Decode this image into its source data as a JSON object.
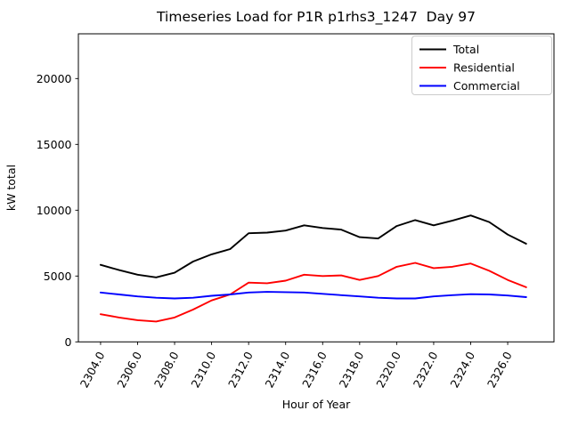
{
  "title": "Timeseries Load for P1R p1rhs3_1247  Day 97",
  "chart_data": {
    "type": "line",
    "title": "Timeseries Load for P1R p1rhs3_1247  Day 97",
    "xlabel": "Hour of Year",
    "ylabel": "kW total",
    "x": [
      2304,
      2305,
      2306,
      2307,
      2308,
      2309,
      2310,
      2311,
      2312,
      2313,
      2314,
      2315,
      2316,
      2317,
      2318,
      2319,
      2320,
      2321,
      2322,
      2323,
      2324,
      2325,
      2326,
      2327
    ],
    "series": [
      {
        "name": "Total",
        "color": "#000000",
        "values": [
          5850,
          5450,
          5100,
          4900,
          5250,
          6100,
          6650,
          7050,
          8250,
          8300,
          8450,
          8850,
          8650,
          8530,
          7950,
          7850,
          8800,
          9250,
          8850,
          9200,
          9600,
          9100,
          8150,
          7450
        ]
      },
      {
        "name": "Residential",
        "color": "#ff0000",
        "values": [
          2100,
          1850,
          1650,
          1550,
          1850,
          2450,
          3150,
          3600,
          4500,
          4450,
          4650,
          5100,
          5000,
          5050,
          4700,
          5000,
          5700,
          6000,
          5600,
          5700,
          5950,
          5400,
          4700,
          4150
        ]
      },
      {
        "name": "Commercial",
        "color": "#0000ff",
        "values": [
          3750,
          3600,
          3450,
          3350,
          3300,
          3350,
          3500,
          3600,
          3750,
          3800,
          3780,
          3750,
          3650,
          3550,
          3450,
          3350,
          3300,
          3300,
          3450,
          3550,
          3620,
          3600,
          3520,
          3400
        ]
      }
    ],
    "xlim": [
      2302.8,
      2328.5
    ],
    "ylim": [
      0,
      23400
    ],
    "xticks": [
      2304,
      2306,
      2308,
      2310,
      2312,
      2314,
      2316,
      2318,
      2320,
      2322,
      2324,
      2326
    ],
    "xtick_labels": [
      "2304.0",
      "2306.0",
      "2308.0",
      "2310.0",
      "2312.0",
      "2314.0",
      "2316.0",
      "2318.0",
      "2320.0",
      "2322.0",
      "2324.0",
      "2326.0"
    ],
    "yticks": [
      0,
      5000,
      10000,
      15000,
      20000
    ],
    "ytick_labels": [
      "0",
      "5000",
      "10000",
      "15000",
      "20000"
    ],
    "xtick_rotation_deg": 62,
    "grid": false,
    "legend_position": "upper right",
    "legend": [
      "Total",
      "Residential",
      "Commercial"
    ],
    "line_width": 1.9
  }
}
